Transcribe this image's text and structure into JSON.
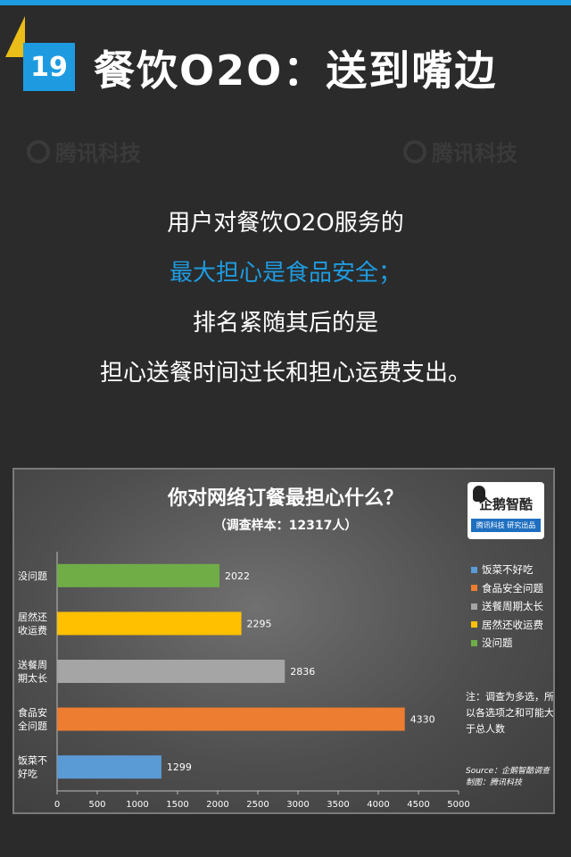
{
  "header": {
    "number": "19",
    "title": "餐饮O2O：送到嘴边"
  },
  "watermark": "腾讯科技",
  "intro": {
    "line1": "用户对餐饮O2O服务的",
    "line2": "最大担心是食品安全；",
    "line3": "排名紧随其后的是",
    "line4": "担心送餐时间过长和担心运费支出。"
  },
  "logo": {
    "main": "企鹅智酷",
    "sub": "腾讯科技 研究出品"
  },
  "note": "注：调查为多选，所以各选项之和可能大于总人数",
  "source_line1": "Source：企鹅智酷调查",
  "source_line2": "制图：腾讯科技",
  "colors": {
    "accent": "#1e9be0",
    "green": "#70ad47",
    "yellow": "#ffc000",
    "gray": "#a5a5a5",
    "orange": "#ed7d31",
    "blue": "#5b9bd5"
  },
  "chart_data": {
    "type": "bar",
    "orientation": "horizontal",
    "title": "你对网络订餐最担心什么？",
    "subtitle": "（调查样本：12317人）",
    "categories": [
      [
        "没问题"
      ],
      [
        "居然还",
        "收运费"
      ],
      [
        "送餐周",
        "期太长"
      ],
      [
        "食品安",
        "全问题"
      ],
      [
        "饭菜不",
        "好吃"
      ]
    ],
    "values": [
      2022,
      2295,
      2836,
      4330,
      1299
    ],
    "bar_colors": [
      "#70ad47",
      "#ffc000",
      "#a5a5a5",
      "#ed7d31",
      "#5b9bd5"
    ],
    "xlim": [
      0,
      5000
    ],
    "xticks": [
      0,
      500,
      1000,
      1500,
      2000,
      2500,
      3000,
      3500,
      4000,
      4500,
      5000
    ],
    "legend": [
      {
        "label": "饭菜不好吃",
        "color": "#5b9bd5"
      },
      {
        "label": "食品安全问题",
        "color": "#ed7d31"
      },
      {
        "label": "送餐周期太长",
        "color": "#a5a5a5"
      },
      {
        "label": "居然还收运费",
        "color": "#ffc000"
      },
      {
        "label": "没问题",
        "color": "#70ad47"
      }
    ],
    "legend_position": "right",
    "grid": false
  }
}
